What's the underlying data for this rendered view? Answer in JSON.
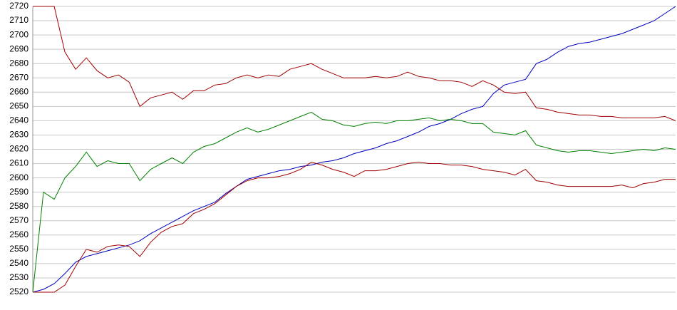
{
  "chart_data": {
    "type": "line",
    "x": [
      0,
      1,
      2,
      3,
      4,
      5,
      6,
      7,
      8,
      9,
      10,
      11,
      12,
      13,
      14,
      15,
      16,
      17,
      18,
      19,
      20,
      21,
      22,
      23,
      24,
      25,
      26,
      27,
      28,
      29,
      30,
      31,
      32,
      33,
      34,
      35,
      36,
      37,
      38,
      39,
      40,
      41,
      42,
      43,
      44,
      45,
      46,
      47,
      48,
      49,
      50,
      51,
      52,
      53,
      54,
      55,
      56,
      57,
      58,
      59,
      60
    ],
    "xlim": [
      0,
      60
    ],
    "ylim": [
      2520,
      2720
    ],
    "yticks": [
      2520,
      2530,
      2540,
      2550,
      2560,
      2570,
      2580,
      2590,
      2600,
      2610,
      2620,
      2630,
      2640,
      2650,
      2660,
      2670,
      2680,
      2690,
      2700,
      2710,
      2720
    ],
    "grid": true,
    "series": [
      {
        "color": "#0000c0",
        "values": [
          2520,
          2522,
          2526,
          2533,
          2541,
          2545,
          2547,
          2549,
          2551,
          2553,
          2556,
          2561,
          2565,
          2569,
          2573,
          2577,
          2580,
          2583,
          2589,
          2594,
          2599,
          2601,
          2603,
          2605,
          2606,
          2608,
          2609,
          2611,
          2612,
          2614,
          2617,
          2619,
          2621,
          2624,
          2626,
          2629,
          2632,
          2636,
          2638,
          2641,
          2645,
          2648,
          2650,
          2659,
          2665,
          2667,
          2669,
          2680,
          2683,
          2688,
          2692,
          2694,
          2695,
          2697,
          2699,
          2701,
          2704,
          2707,
          2710,
          2715,
          2720
        ]
      },
      {
        "color": "#a00000",
        "values": [
          2720,
          2720,
          2720,
          2688,
          2676,
          2684,
          2675,
          2670,
          2672,
          2667,
          2650,
          2656,
          2658,
          2660,
          2655,
          2661,
          2661,
          2665,
          2666,
          2670,
          2672,
          2670,
          2672,
          2671,
          2676,
          2678,
          2680,
          2676,
          2673,
          2670,
          2670,
          2670,
          2671,
          2670,
          2671,
          2674,
          2671,
          2670,
          2668,
          2668,
          2667,
          2664,
          2668,
          2665,
          2660,
          2659,
          2660,
          2649,
          2648,
          2646,
          2645,
          2644,
          2644,
          2643,
          2643,
          2642,
          2642,
          2642,
          2642,
          2643,
          2640
        ]
      },
      {
        "color": "#008000",
        "values": [
          2520,
          2590,
          2585,
          2600,
          2608,
          2618,
          2608,
          2612,
          2610,
          2610,
          2598,
          2606,
          2610,
          2614,
          2610,
          2618,
          2622,
          2624,
          2628,
          2632,
          2635,
          2632,
          2634,
          2637,
          2640,
          2643,
          2646,
          2641,
          2640,
          2637,
          2636,
          2638,
          2639,
          2638,
          2640,
          2640,
          2641,
          2642,
          2640,
          2641,
          2640,
          2638,
          2638,
          2632,
          2631,
          2630,
          2633,
          2623,
          2621,
          2619,
          2618,
          2619,
          2619,
          2618,
          2617,
          2618,
          2619,
          2620,
          2619,
          2621,
          2620
        ]
      },
      {
        "color": "#a00000",
        "values": [
          2520,
          2520,
          2520,
          2525,
          2538,
          2550,
          2548,
          2552,
          2553,
          2552,
          2545,
          2555,
          2562,
          2566,
          2568,
          2575,
          2578,
          2582,
          2588,
          2594,
          2598,
          2600,
          2600,
          2601,
          2603,
          2606,
          2611,
          2609,
          2606,
          2604,
          2601,
          2605,
          2605,
          2606,
          2608,
          2610,
          2611,
          2610,
          2610,
          2609,
          2609,
          2608,
          2606,
          2605,
          2604,
          2602,
          2606,
          2598,
          2597,
          2595,
          2594,
          2594,
          2594,
          2594,
          2594,
          2595,
          2593,
          2596,
          2597,
          2599,
          2599
        ]
      }
    ]
  }
}
